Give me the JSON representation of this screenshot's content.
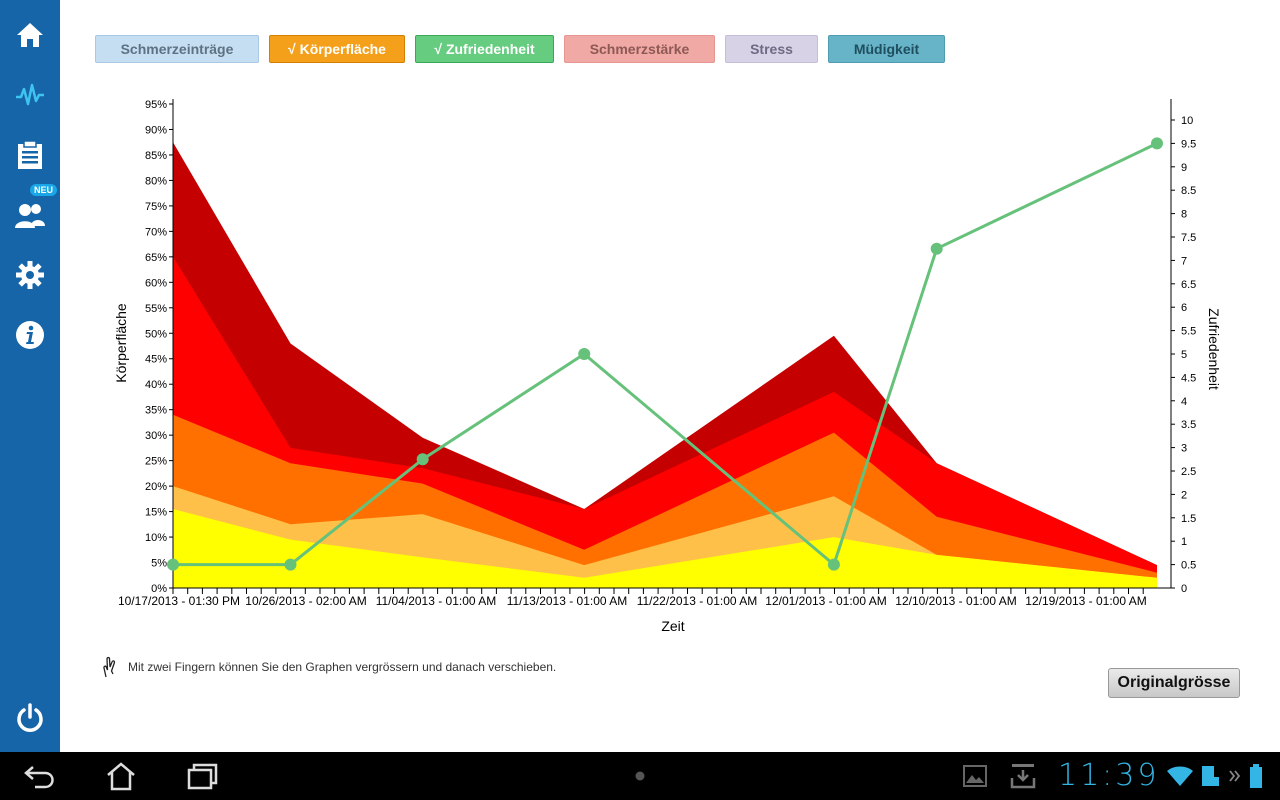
{
  "sidebar": {
    "items": [
      {
        "icon": "home-icon"
      },
      {
        "icon": "pulse-icon"
      },
      {
        "icon": "clipboard-icon"
      },
      {
        "icon": "users-icon",
        "badge": "NEU"
      },
      {
        "icon": "gear-icon"
      },
      {
        "icon": "info-icon"
      }
    ],
    "power_icon": "power-icon"
  },
  "filters": [
    {
      "label": "Schmerzeinträge",
      "selected": false,
      "color": "#c6def2"
    },
    {
      "label": "√ Körperfläche",
      "selected": true,
      "color": "#f5a01a"
    },
    {
      "label": "√ Zufriedenheit",
      "selected": true,
      "color": "#66cc80"
    },
    {
      "label": "Schmerzstärke",
      "selected": false,
      "color": "#f0a9a4"
    },
    {
      "label": "Stress",
      "selected": false,
      "color": "#d7d2e6"
    },
    {
      "label": "Müdigkeit",
      "selected": false,
      "color": "#67b3c7"
    }
  ],
  "chart_data": {
    "type": "area",
    "xlabel": "Zeit",
    "ylabel_left": "Körperfläche",
    "ylabel_right": "Zufriedenheit",
    "ylim_left": [
      0,
      95
    ],
    "ylim_right": [
      0,
      10
    ],
    "y_left_ticks": [
      "0%",
      "5%",
      "10%",
      "15%",
      "20%",
      "25%",
      "30%",
      "35%",
      "40%",
      "45%",
      "50%",
      "55%",
      "60%",
      "65%",
      "70%",
      "75%",
      "80%",
      "85%",
      "90%",
      "95%"
    ],
    "y_right_ticks": [
      "0",
      "0.5",
      "1",
      "1.5",
      "2",
      "2.5",
      "3",
      "3.5",
      "4",
      "4.5",
      "5",
      "5.5",
      "6",
      "6.5",
      "7",
      "7.5",
      "8",
      "8.5",
      "9",
      "9.5",
      "10"
    ],
    "x_tick_labels": [
      "10/17/2013 - 01:30 PM",
      "10/26/2013 - 02:00 AM",
      "11/04/2013 - 01:00 AM",
      "11/13/2013 - 01:00 AM",
      "11/22/2013 - 01:00 AM",
      "12/01/2013 - 01:00 AM",
      "12/10/2013 - 01:00 AM",
      "12/19/2013 - 01:00 AM"
    ],
    "x_dates": [
      "2013-10-17",
      "2013-10-25",
      "2013-11-03",
      "2013-11-14",
      "2013-12-01",
      "2013-12-08",
      "2013-12-23"
    ],
    "area_series": [
      {
        "color": "#ffff00",
        "values": [
          15.5,
          9.5,
          6,
          2,
          10,
          6.5,
          2
        ]
      },
      {
        "color": "#ffc04a",
        "values": [
          20,
          12.5,
          14.5,
          4.5,
          18,
          6.5,
          2
        ]
      },
      {
        "color": "#ff7000",
        "values": [
          34,
          24.5,
          20.5,
          7.5,
          30.5,
          14,
          3
        ]
      },
      {
        "color": "#ff0000",
        "values": [
          65,
          27.5,
          23.5,
          15.5,
          38.5,
          24.5,
          4.5
        ]
      },
      {
        "color": "#c40000",
        "values": [
          87.5,
          48,
          29.5,
          15.5,
          49.5,
          24.5,
          4.5
        ]
      }
    ],
    "line_series": {
      "color": "#66c17a",
      "dates": [
        "2013-10-17",
        "2013-10-25",
        "2013-11-03",
        "2013-11-14",
        "2013-12-01",
        "2013-12-08",
        "2013-12-23"
      ],
      "values": [
        0.5,
        0.5,
        2.75,
        5,
        0.5,
        7.25,
        9.5
      ]
    }
  },
  "hint": "Mit zwei Fingern können Sie den Graphen vergrössern und danach verschieben.",
  "reset_button": "Originalgrösse",
  "status_bar": {
    "time": "11:39"
  }
}
